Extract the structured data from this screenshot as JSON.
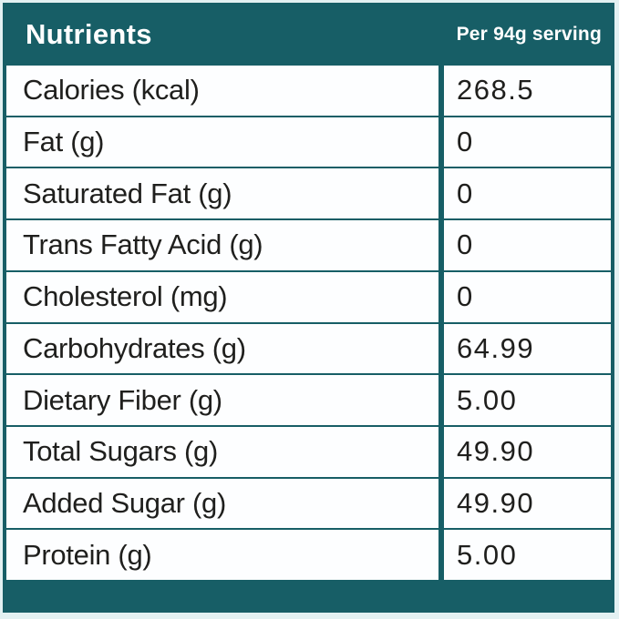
{
  "colors": {
    "teal": "#175e66",
    "page_bg": "#e3f1f2",
    "cell_bg": "#fdfeff",
    "text": "#1f1f1d",
    "header_text": "#ffffff"
  },
  "header": {
    "title": "Nutrients",
    "serving": "Per 94g serving"
  },
  "table": {
    "rows": [
      {
        "label": "Calories (kcal)",
        "value": "268.5"
      },
      {
        "label": "Fat (g)",
        "value": "0"
      },
      {
        "label": "Saturated Fat (g)",
        "value": "0"
      },
      {
        "label": "Trans Fatty Acid (g)",
        "value": "0"
      },
      {
        "label": "Cholesterol (mg)",
        "value": "0"
      },
      {
        "label": "Carbohydrates (g)",
        "value": "64.99"
      },
      {
        "label": "Dietary Fiber (g)",
        "value": "5.00"
      },
      {
        "label": "Total Sugars (g)",
        "value": "49.90"
      },
      {
        "label": "Added Sugar (g)",
        "value": "49.90"
      },
      {
        "label": "Protein (g)",
        "value": "5.00"
      }
    ]
  },
  "chart_data": {
    "type": "table",
    "title": "Nutrients",
    "columns": [
      "Nutrients",
      "Per 94g serving"
    ],
    "rows": [
      [
        "Calories (kcal)",
        "268.5"
      ],
      [
        "Fat (g)",
        "0"
      ],
      [
        "Saturated Fat (g)",
        "0"
      ],
      [
        "Trans Fatty Acid (g)",
        "0"
      ],
      [
        "Cholesterol (mg)",
        "0"
      ],
      [
        "Carbohydrates (g)",
        "64.99"
      ],
      [
        "Dietary Fiber (g)",
        "5.00"
      ],
      [
        "Total Sugars (g)",
        "49.90"
      ],
      [
        "Added Sugar (g)",
        "49.90"
      ],
      [
        "Protein (g)",
        "5.00"
      ]
    ]
  }
}
